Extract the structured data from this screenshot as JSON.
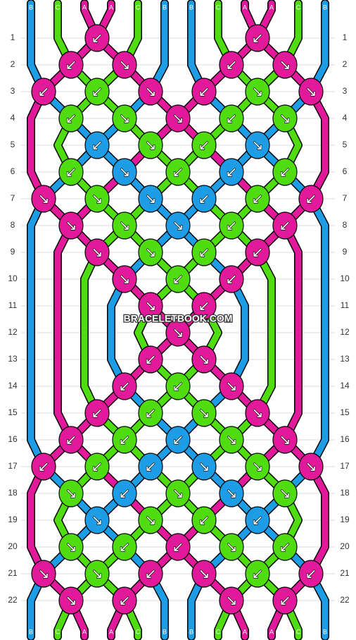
{
  "title": "BRACELETBOOK.COM",
  "colors": {
    "A": "#e3199b",
    "B": "#1c9de6",
    "C": "#4fdc10"
  },
  "top_labels": [
    "B",
    "C",
    "A",
    "A",
    "C",
    "B",
    "B",
    "C",
    "A",
    "A",
    "C",
    "B"
  ],
  "bottom_labels": [
    "B",
    "C",
    "A",
    "A",
    "C",
    "B",
    "B",
    "C",
    "A",
    "A",
    "C",
    "B"
  ],
  "rows": [
    {
      "label": "1",
      "knots": [
        null,
        {
          "s": "A",
          "a": "↙"
        },
        null,
        null,
        {
          "s": "A",
          "a": "↙"
        },
        null
      ]
    },
    {
      "label": "2",
      "knots": [
        {
          "s": "A",
          "a": "↙"
        },
        {
          "s": "A",
          "a": "↘"
        },
        null,
        {
          "s": "A",
          "a": "↙"
        },
        {
          "s": "A",
          "a": "↘"
        }
      ]
    },
    {
      "label": "3",
      "knots": [
        {
          "s": "A",
          "a": "↙"
        },
        {
          "s": "C",
          "a": "↙"
        },
        {
          "s": "A",
          "a": "↘"
        },
        {
          "s": "A",
          "a": "↙"
        },
        {
          "s": "C",
          "a": "↘"
        },
        {
          "s": "A",
          "a": "↘"
        }
      ]
    },
    {
      "label": "4",
      "knots": [
        {
          "s": "C",
          "a": "↙"
        },
        {
          "s": "C",
          "a": "↘"
        },
        {
          "s": "A",
          "a": "↘"
        },
        {
          "s": "C",
          "a": "↙"
        },
        {
          "s": "C",
          "a": "↘"
        }
      ]
    },
    {
      "label": "5",
      "knots": [
        null,
        {
          "s": "B",
          "a": "↙"
        },
        {
          "s": "C",
          "a": "↘"
        },
        {
          "s": "C",
          "a": "↙"
        },
        {
          "s": "B",
          "a": "↘"
        },
        null
      ]
    },
    {
      "label": "6",
      "knots": [
        {
          "s": "C",
          "a": "↙"
        },
        {
          "s": "B",
          "a": "↘"
        },
        {
          "s": "C",
          "a": "↙"
        },
        {
          "s": "B",
          "a": "↙"
        },
        {
          "s": "C",
          "a": "↙"
        }
      ]
    },
    {
      "label": "7",
      "knots": [
        {
          "s": "A",
          "a": "↘"
        },
        {
          "s": "C",
          "a": "↘"
        },
        {
          "s": "B",
          "a": "↘"
        },
        {
          "s": "B",
          "a": "↙"
        },
        {
          "s": "C",
          "a": "↙"
        },
        {
          "s": "A",
          "a": "↙"
        }
      ]
    },
    {
      "label": "8",
      "knots": [
        {
          "s": "A",
          "a": "↘"
        },
        {
          "s": "C",
          "a": "↘"
        },
        {
          "s": "B",
          "a": "↘"
        },
        {
          "s": "C",
          "a": "↙"
        },
        {
          "s": "A",
          "a": "↙"
        }
      ]
    },
    {
      "label": "9",
      "knots": [
        null,
        {
          "s": "A",
          "a": "↘"
        },
        {
          "s": "C",
          "a": "↘"
        },
        {
          "s": "C",
          "a": "↙"
        },
        {
          "s": "A",
          "a": "↙"
        },
        null
      ]
    },
    {
      "label": "10",
      "knots": [
        null,
        {
          "s": "A",
          "a": "↘"
        },
        {
          "s": "C",
          "a": "↙"
        },
        {
          "s": "A",
          "a": "↙"
        },
        null
      ]
    },
    {
      "label": "11",
      "knots": [
        null,
        null,
        {
          "s": "A",
          "a": "↘"
        },
        {
          "s": "A",
          "a": "↙"
        },
        null,
        null
      ]
    },
    {
      "label": "12",
      "knots": [
        null,
        null,
        {
          "s": "A",
          "a": "↘"
        },
        null,
        null
      ]
    },
    {
      "label": "13",
      "knots": [
        null,
        null,
        {
          "s": "A",
          "a": "↙"
        },
        {
          "s": "A",
          "a": "↘"
        },
        null,
        null
      ]
    },
    {
      "label": "14",
      "knots": [
        null,
        {
          "s": "A",
          "a": "↙"
        },
        {
          "s": "C",
          "a": "↙"
        },
        {
          "s": "A",
          "a": "↘"
        },
        null
      ]
    },
    {
      "label": "15",
      "knots": [
        null,
        {
          "s": "A",
          "a": "↙"
        },
        {
          "s": "C",
          "a": "↙"
        },
        {
          "s": "C",
          "a": "↘"
        },
        {
          "s": "A",
          "a": "↘"
        },
        null
      ]
    },
    {
      "label": "16",
      "knots": [
        {
          "s": "A",
          "a": "↙"
        },
        {
          "s": "C",
          "a": "↙"
        },
        {
          "s": "B",
          "a": "↙"
        },
        {
          "s": "C",
          "a": "↘"
        },
        {
          "s": "A",
          "a": "↘"
        }
      ]
    },
    {
      "label": "17",
      "knots": [
        {
          "s": "A",
          "a": "↙"
        },
        {
          "s": "C",
          "a": "↙"
        },
        {
          "s": "B",
          "a": "↙"
        },
        {
          "s": "B",
          "a": "↘"
        },
        {
          "s": "C",
          "a": "↘"
        },
        {
          "s": "A",
          "a": "↘"
        }
      ]
    },
    {
      "label": "18",
      "knots": [
        {
          "s": "C",
          "a": "↘"
        },
        {
          "s": "B",
          "a": "↙"
        },
        {
          "s": "C",
          "a": "↘"
        },
        {
          "s": "B",
          "a": "↘"
        },
        {
          "s": "C",
          "a": "↘"
        }
      ]
    },
    {
      "label": "19",
      "knots": [
        null,
        {
          "s": "B",
          "a": "↘"
        },
        {
          "s": "C",
          "a": "↘"
        },
        {
          "s": "C",
          "a": "↙"
        },
        {
          "s": "B",
          "a": "↙"
        },
        null
      ]
    },
    {
      "label": "20",
      "knots": [
        {
          "s": "C",
          "a": "↘"
        },
        {
          "s": "C",
          "a": "↙"
        },
        {
          "s": "A",
          "a": "↙"
        },
        {
          "s": "C",
          "a": "↘"
        },
        {
          "s": "C",
          "a": "↙"
        }
      ]
    },
    {
      "label": "21",
      "knots": [
        {
          "s": "A",
          "a": "↘"
        },
        {
          "s": "C",
          "a": "↘"
        },
        {
          "s": "A",
          "a": "↙"
        },
        {
          "s": "A",
          "a": "↘"
        },
        {
          "s": "C",
          "a": "↙"
        },
        {
          "s": "A",
          "a": "↙"
        }
      ]
    },
    {
      "label": "22",
      "knots": [
        {
          "s": "A",
          "a": "↘"
        },
        {
          "s": "A",
          "a": "↙"
        },
        null,
        {
          "s": "A",
          "a": "↘"
        },
        {
          "s": "A",
          "a": "↙"
        }
      ]
    }
  ]
}
